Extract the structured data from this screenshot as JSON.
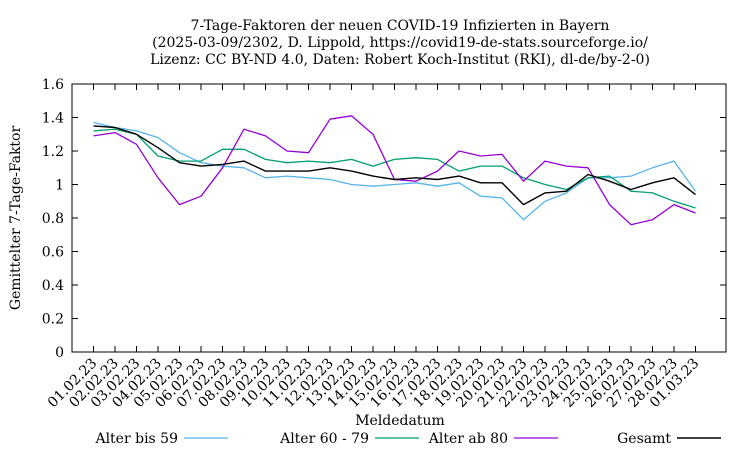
{
  "chart_data": {
    "type": "line",
    "title": [
      "7-Tage-Faktoren der neuen COVID-19 Infizierten in Bayern",
      "(2025-03-09/2302, D. Lippold, https://covid19-de-stats.sourceforge.io/",
      "Lizenz: CC BY-ND 4.0, Daten: Robert Koch-Institut (RKI), dl-de/by-2-0)"
    ],
    "xlabel": "Meldedatum",
    "ylabel": "Gemittelter 7-Tage-Faktor",
    "ylim": [
      0,
      1.6
    ],
    "yticks": [
      "0",
      "0.2",
      "0.4",
      "0.6",
      "0.8",
      "1",
      "1.2",
      "1.4",
      "1.6"
    ],
    "grid": false,
    "legend_position": "bottom",
    "categories": [
      "01.02.23",
      "02.02.23",
      "03.02.23",
      "04.02.23",
      "05.02.23",
      "06.02.23",
      "07.02.23",
      "08.02.23",
      "09.02.23",
      "10.02.23",
      "11.02.23",
      "12.02.23",
      "13.02.23",
      "14.02.23",
      "15.02.23",
      "16.02.23",
      "17.02.23",
      "18.02.23",
      "19.02.23",
      "20.02.23",
      "21.02.23",
      "22.02.23",
      "23.02.23",
      "24.02.23",
      "25.02.23",
      "26.02.23",
      "27.02.23",
      "28.02.23",
      "01.03.23"
    ],
    "series": [
      {
        "name": "Alter bis 59",
        "color": "#56b4e9",
        "values": [
          1.37,
          1.34,
          1.32,
          1.28,
          1.19,
          1.13,
          1.11,
          1.1,
          1.04,
          1.05,
          1.04,
          1.03,
          1.0,
          0.99,
          1.0,
          1.01,
          0.99,
          1.01,
          0.93,
          0.92,
          0.79,
          0.9,
          0.95,
          1.04,
          1.04,
          1.05,
          1.1,
          1.14,
          0.96
        ]
      },
      {
        "name": "Alter 60 - 79",
        "color": "#009e73",
        "values": [
          1.32,
          1.33,
          1.3,
          1.17,
          1.14,
          1.14,
          1.21,
          1.21,
          1.15,
          1.13,
          1.14,
          1.13,
          1.15,
          1.11,
          1.15,
          1.16,
          1.15,
          1.08,
          1.11,
          1.11,
          1.04,
          1.0,
          0.97,
          1.04,
          1.05,
          0.96,
          0.95,
          0.9,
          0.86
        ]
      },
      {
        "name": "Alter ab 80",
        "color": "#9400d3",
        "values": [
          1.29,
          1.31,
          1.24,
          1.04,
          0.88,
          0.93,
          1.1,
          1.33,
          1.29,
          1.2,
          1.19,
          1.39,
          1.41,
          1.3,
          1.03,
          1.02,
          1.08,
          1.2,
          1.17,
          1.18,
          1.02,
          1.14,
          1.11,
          1.1,
          0.88,
          0.76,
          0.79,
          0.88,
          0.83
        ]
      },
      {
        "name": "Gesamt",
        "color": "#000000",
        "values": [
          1.35,
          1.34,
          1.3,
          1.22,
          1.13,
          1.11,
          1.12,
          1.14,
          1.08,
          1.08,
          1.08,
          1.1,
          1.08,
          1.05,
          1.03,
          1.04,
          1.03,
          1.05,
          1.01,
          1.01,
          0.88,
          0.95,
          0.96,
          1.06,
          1.02,
          0.97,
          1.01,
          1.04,
          0.94
        ]
      }
    ]
  }
}
